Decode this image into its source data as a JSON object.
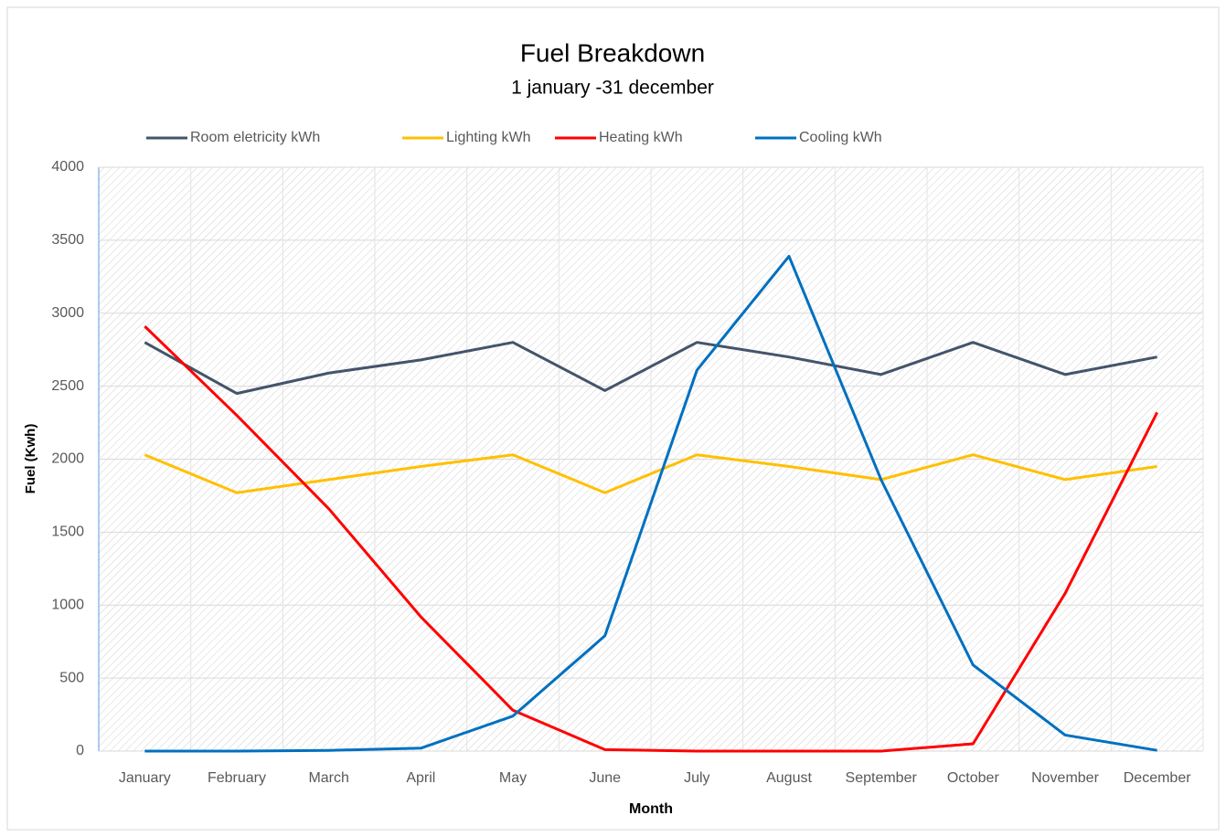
{
  "chart_data": {
    "type": "line",
    "title": "Fuel Breakdown",
    "subtitle": "1 january -31 december",
    "x_label": "Month",
    "y_label": "Fuel (Kwh)",
    "categories": [
      "January",
      "February",
      "March",
      "April",
      "May",
      "June",
      "July",
      "August",
      "September",
      "October",
      "November",
      "December"
    ],
    "series": [
      {
        "name": "Room eletricity kWh",
        "color": "#44546a",
        "values": [
          2800,
          2450,
          2590,
          2680,
          2800,
          2470,
          2800,
          2700,
          2580,
          2800,
          2580,
          2700
        ]
      },
      {
        "name": "Lighting kWh",
        "color": "#ffc000",
        "values": [
          2030,
          1770,
          1860,
          1950,
          2030,
          1770,
          2030,
          1950,
          1860,
          2030,
          1860,
          1950
        ]
      },
      {
        "name": "Heating kWh",
        "color": "#ff0000",
        "values": [
          2910,
          2300,
          1660,
          920,
          280,
          10,
          0,
          0,
          0,
          50,
          1080,
          2320
        ]
      },
      {
        "name": "Cooling kWh",
        "color": "#0070c0",
        "values": [
          0,
          0,
          5,
          20,
          240,
          790,
          2610,
          3390,
          1860,
          590,
          110,
          5
        ]
      }
    ],
    "ylim": [
      0,
      4000
    ],
    "yticks": [
      0,
      500,
      1000,
      1500,
      2000,
      2500,
      3000,
      3500,
      4000
    ],
    "grid": true,
    "legend": "top"
  }
}
